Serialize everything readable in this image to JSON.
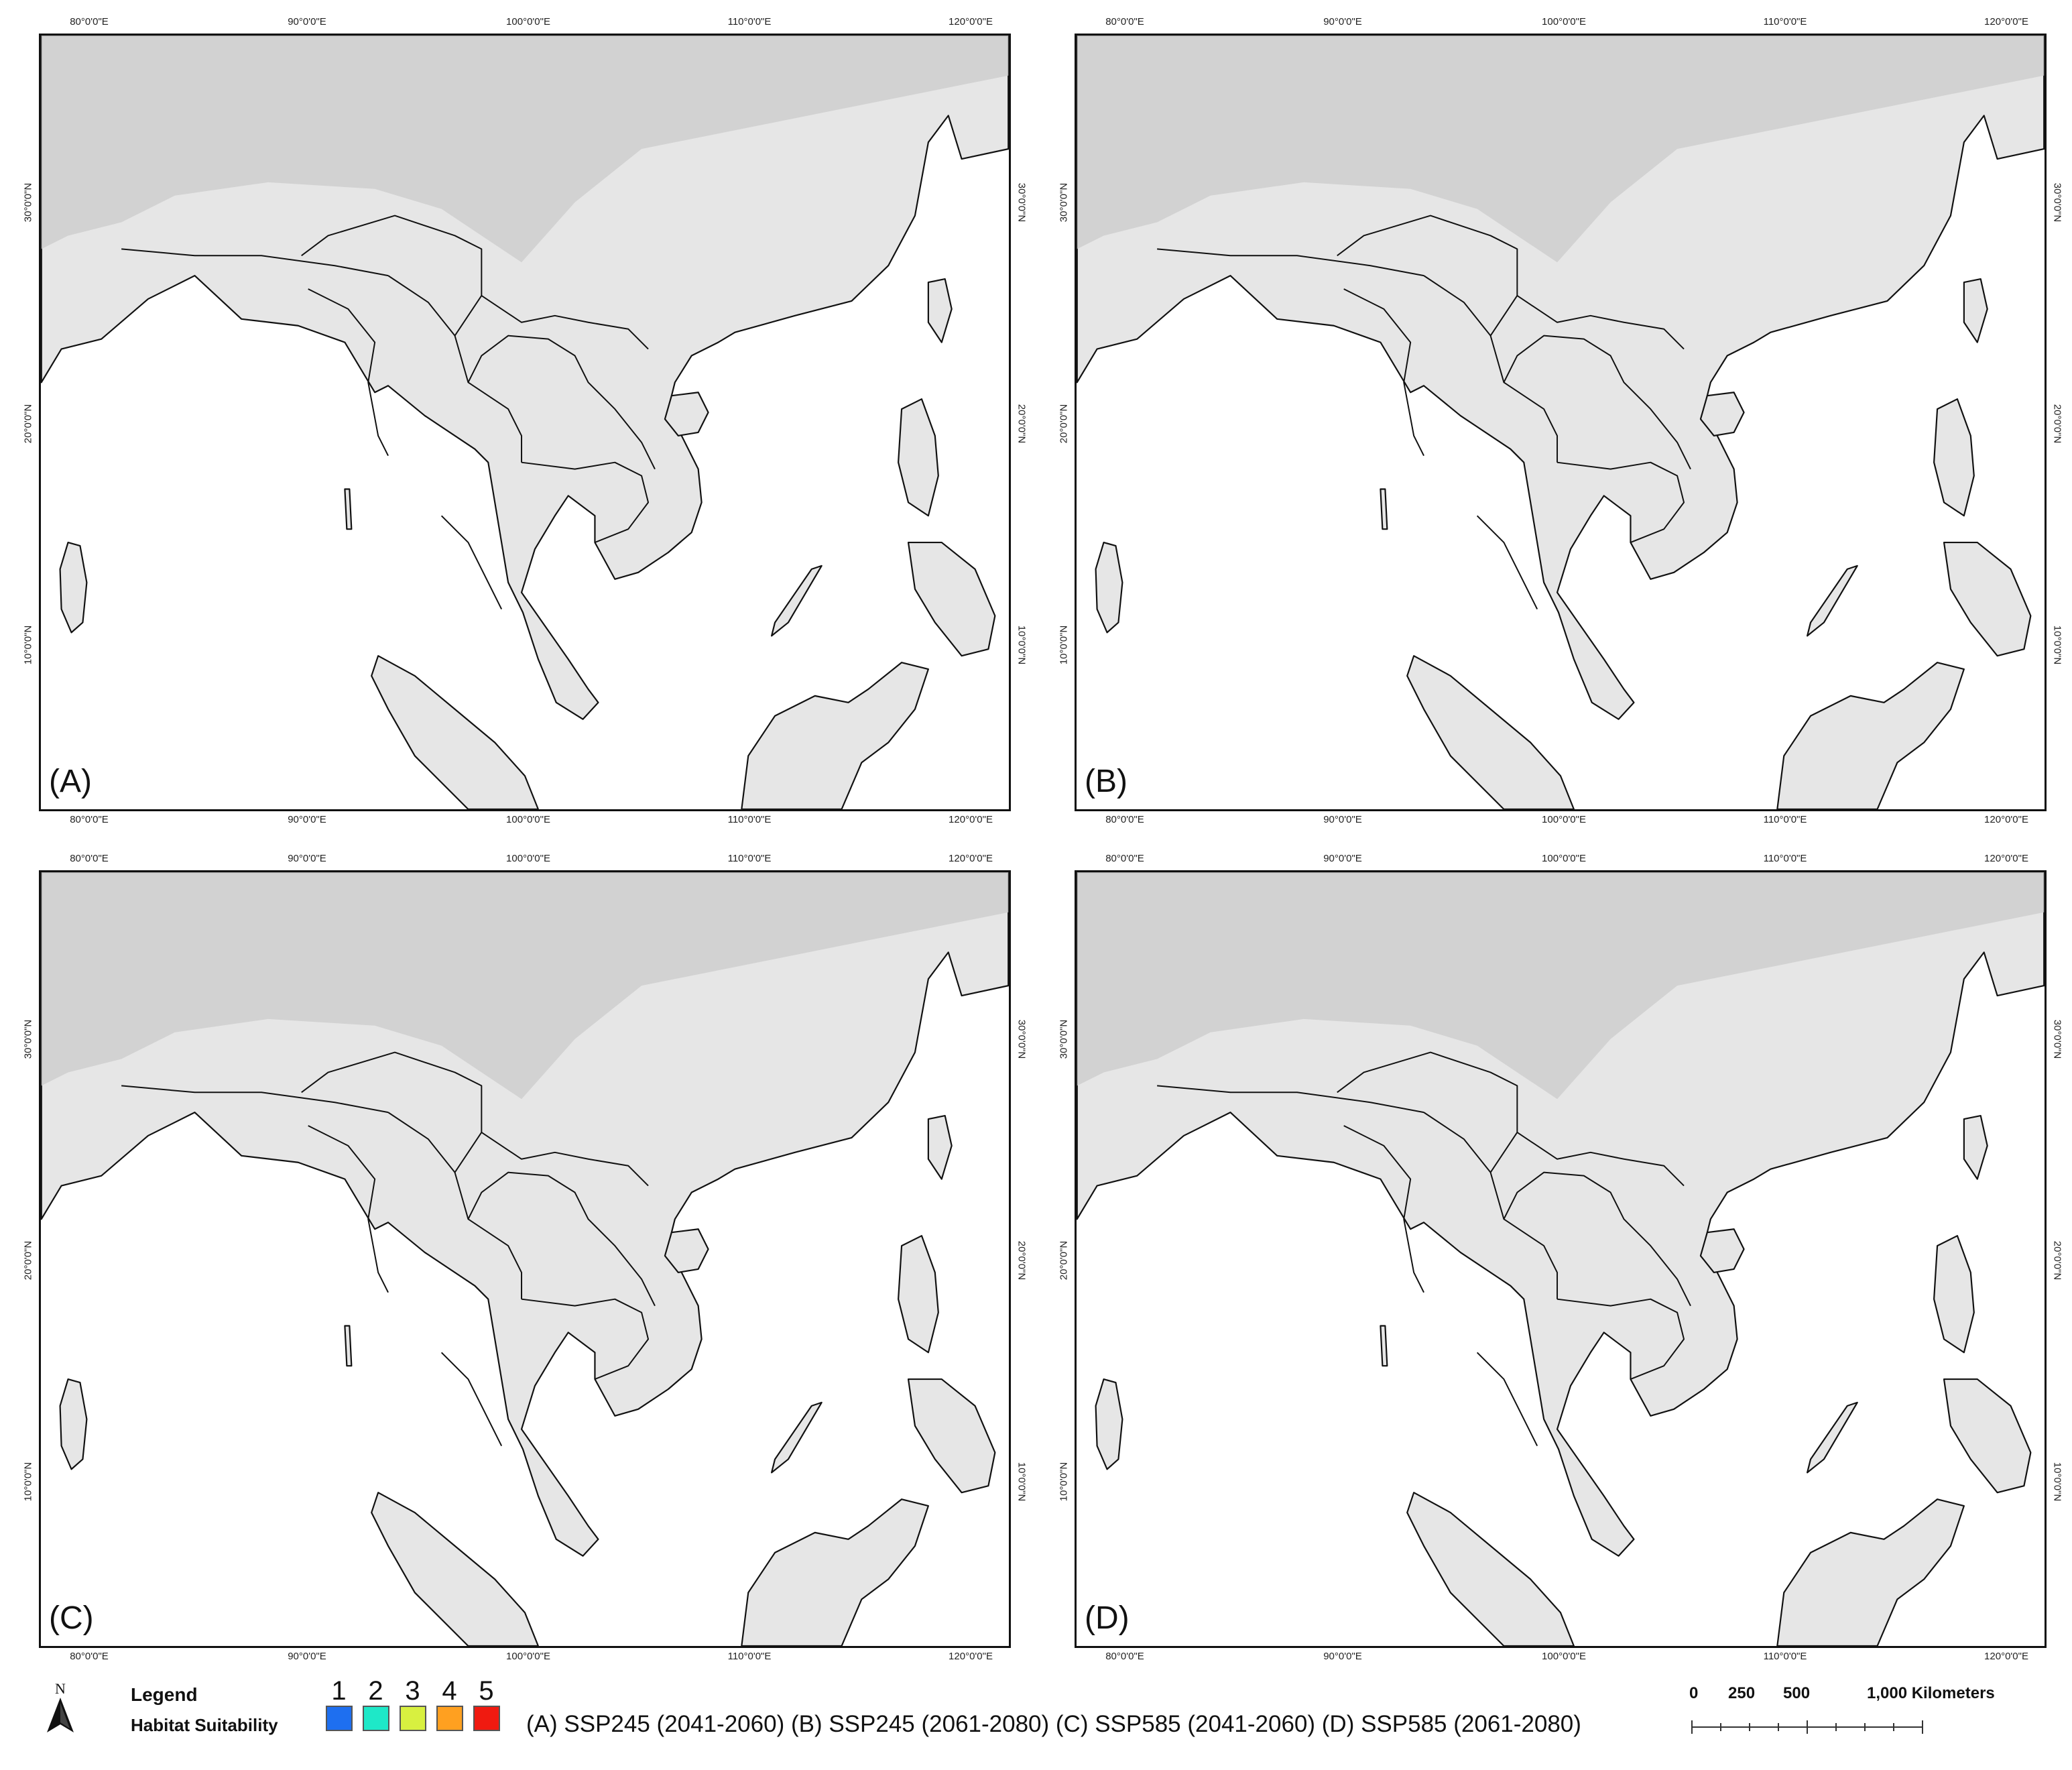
{
  "panels": [
    {
      "label": "(A)"
    },
    {
      "label": "(B)"
    },
    {
      "label": "(C)"
    },
    {
      "label": "(D)"
    }
  ],
  "axes": {
    "lon_ticks": [
      "80°0'0\"E",
      "90°0'0\"E",
      "100°0'0\"E",
      "110°0'0\"E",
      "120°0'0\"E"
    ],
    "lat_ticks": [
      "30°0'0\"N",
      "20°0'0\"N",
      "10°0'0\"N"
    ]
  },
  "legend": {
    "north_label": "N",
    "title": "Legend",
    "subtitle": "Habitat Suitability",
    "classes": [
      {
        "label": "1",
        "color": "#1e6ff0"
      },
      {
        "label": "2",
        "color": "#1ee8c8"
      },
      {
        "label": "3",
        "color": "#d8f040"
      },
      {
        "label": "4",
        "color": "#ffa020"
      },
      {
        "label": "5",
        "color": "#f01a10"
      }
    ],
    "scenarios": "(A) SSP245 (2041-2060) (B) SSP245 (2061-2080) (C) SSP585 (2041-2060) (D) SSP585 (2061-2080)"
  },
  "scale_bar": {
    "labels": [
      "0",
      "250",
      "500",
      "1,000 Kilometers"
    ]
  },
  "colors": {
    "land": "#e6e6e6",
    "plateau": "#cdcdcd",
    "sea": "#ffffff",
    "border": "#111111"
  }
}
